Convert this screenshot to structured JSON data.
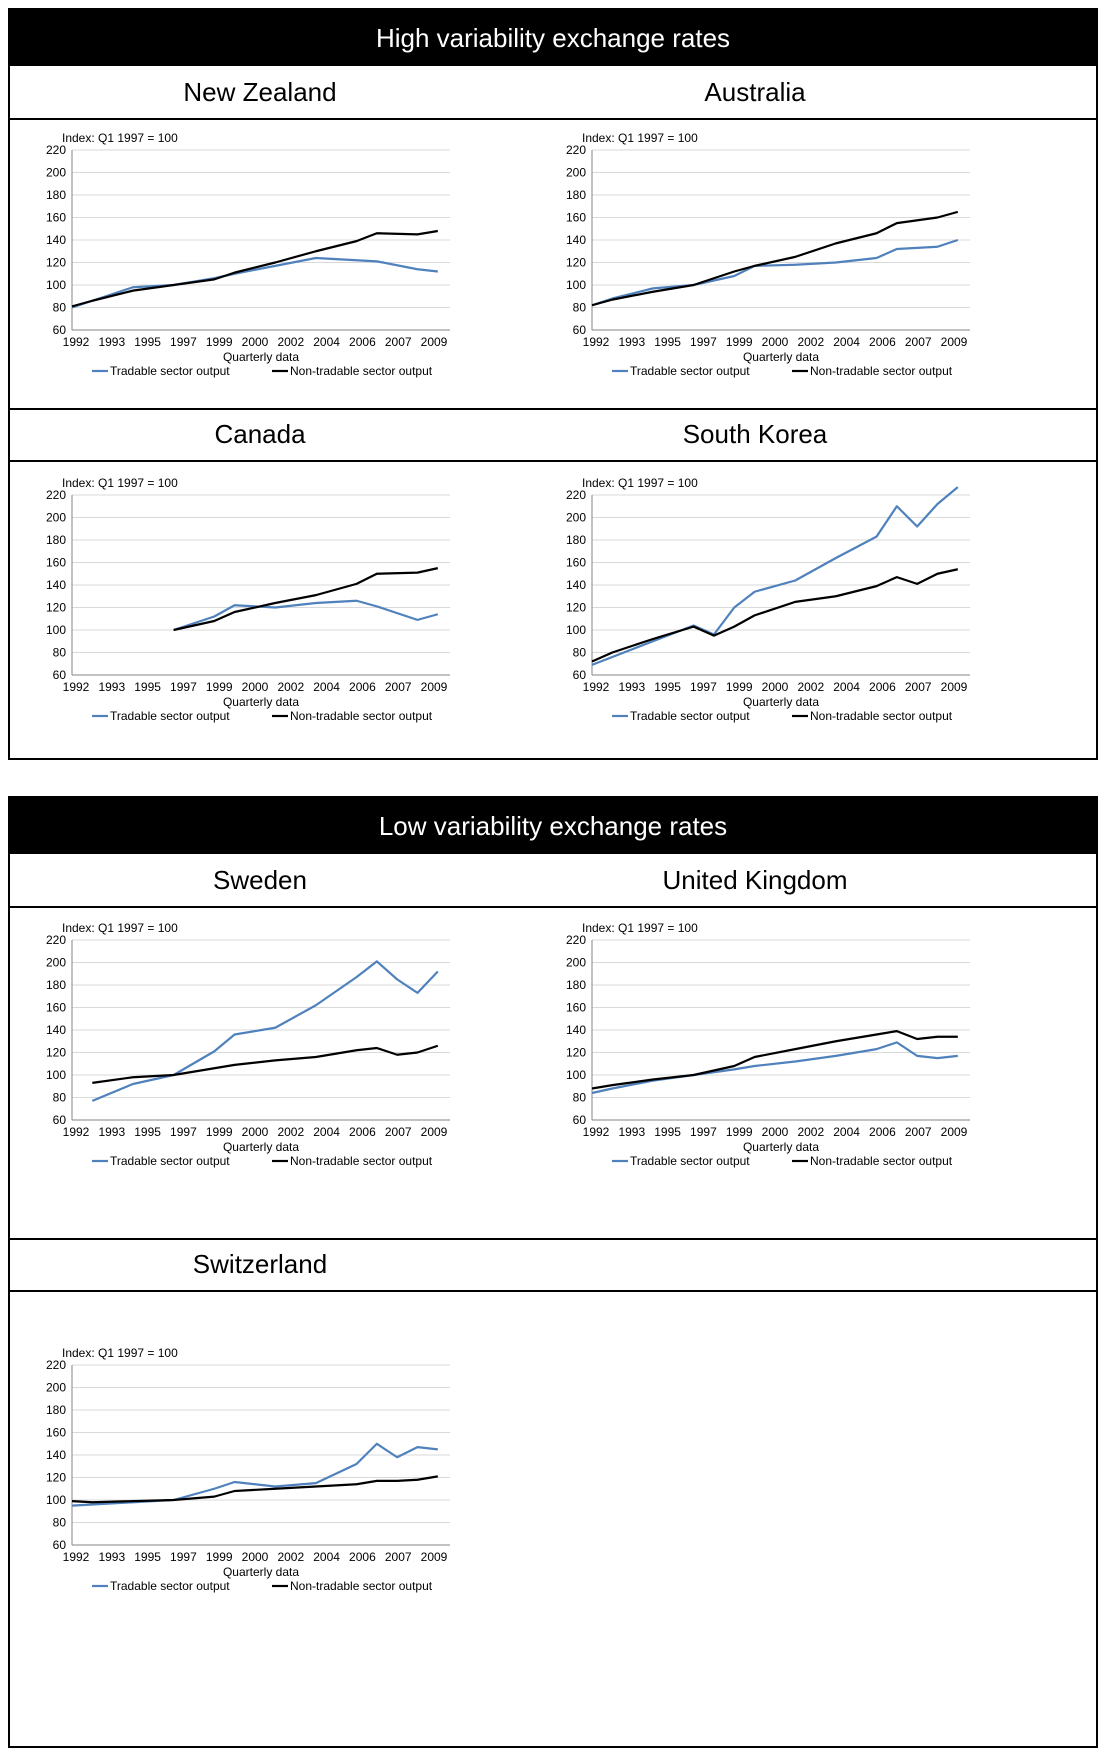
{
  "sections": [
    {
      "title": "High variability exchange rates"
    },
    {
      "title": "Low variability exchange rates"
    }
  ],
  "countries": [
    "New Zealand",
    "Australia",
    "Canada",
    "South Korea",
    "Sweden",
    "United Kingdom",
    "Switzerland"
  ],
  "colors": {
    "tradable": "#4F81BD",
    "non_tradable": "#000000",
    "grid": "#D9D9D9"
  },
  "chart_common": {
    "index_label": "Index: Q1 1997 = 100",
    "xlabel": "Quarterly data",
    "x_ticks": [
      "1992",
      "1993",
      "1995",
      "1997",
      "1999",
      "2000",
      "2002",
      "2004",
      "2006",
      "2007",
      "2009"
    ],
    "y_ticks": [
      60,
      80,
      100,
      120,
      140,
      160,
      180,
      200,
      220
    ],
    "ylim": [
      60,
      220
    ],
    "legend": [
      "Tradable sector output",
      "Non-tradable sector output"
    ]
  },
  "chart_data": [
    {
      "type": "line",
      "title": "New Zealand",
      "xlabel": "Quarterly data",
      "ylim": [
        60,
        220
      ],
      "x": [
        "1992",
        "1993",
        "1995",
        "1997",
        "1999",
        "2000",
        "2002",
        "2004",
        "2006",
        "2007",
        "2009",
        "2010"
      ],
      "series": [
        {
          "name": "Tradable sector output",
          "values": [
            80,
            86,
            98,
            100,
            106,
            110,
            117,
            124,
            122,
            121,
            114,
            112
          ]
        },
        {
          "name": "Non-tradable sector output",
          "values": [
            81,
            86,
            95,
            100,
            105,
            111,
            120,
            130,
            139,
            146,
            145,
            148
          ]
        }
      ]
    },
    {
      "type": "line",
      "title": "Australia",
      "xlabel": "Quarterly data",
      "ylim": [
        60,
        220
      ],
      "x": [
        "1992",
        "1993",
        "1995",
        "1997",
        "1999",
        "2000",
        "2002",
        "2004",
        "2006",
        "2007",
        "2009",
        "2010"
      ],
      "series": [
        {
          "name": "Tradable sector output",
          "values": [
            82,
            88,
            97,
            100,
            108,
            117,
            118,
            120,
            124,
            132,
            134,
            140
          ]
        },
        {
          "name": "Non-tradable sector output",
          "values": [
            82,
            87,
            94,
            100,
            112,
            117,
            125,
            137,
            146,
            155,
            160,
            165
          ]
        }
      ]
    },
    {
      "type": "line",
      "title": "Canada",
      "xlabel": "Quarterly data",
      "ylim": [
        60,
        220
      ],
      "x": [
        "1997",
        "1999",
        "2000",
        "2002",
        "2004",
        "2006",
        "2007",
        "2009",
        "2010"
      ],
      "series": [
        {
          "name": "Tradable sector output",
          "values": [
            100,
            112,
            122,
            120,
            124,
            126,
            121,
            109,
            114
          ]
        },
        {
          "name": "Non-tradable sector output",
          "values": [
            100,
            108,
            116,
            124,
            131,
            141,
            150,
            151,
            155
          ]
        }
      ]
    },
    {
      "type": "line",
      "title": "South Korea",
      "xlabel": "Quarterly data",
      "ylim": [
        60,
        220
      ],
      "x": [
        "1992",
        "1993",
        "1995",
        "1997",
        "1998",
        "1999",
        "2000",
        "2002",
        "2004",
        "2006",
        "2007",
        "2008",
        "2009",
        "2010"
      ],
      "series": [
        {
          "name": "Tradable sector output",
          "values": [
            69,
            76,
            90,
            104,
            96,
            120,
            134,
            144,
            164,
            183,
            210,
            192,
            212,
            227
          ]
        },
        {
          "name": "Non-tradable sector output",
          "values": [
            72,
            80,
            92,
            103,
            95,
            103,
            113,
            125,
            130,
            139,
            147,
            141,
            150,
            154
          ]
        }
      ]
    },
    {
      "type": "line",
      "title": "Sweden",
      "xlabel": "Quarterly data",
      "ylim": [
        60,
        220
      ],
      "x": [
        "1993",
        "1995",
        "1997",
        "1999",
        "2000",
        "2002",
        "2004",
        "2006",
        "2007",
        "2008",
        "2009",
        "2010"
      ],
      "series": [
        {
          "name": "Tradable sector output",
          "values": [
            77,
            92,
            100,
            121,
            136,
            142,
            162,
            187,
            201,
            185,
            173,
            192
          ]
        },
        {
          "name": "Non-tradable sector output",
          "values": [
            93,
            98,
            100,
            106,
            109,
            113,
            116,
            122,
            124,
            118,
            120,
            126
          ]
        }
      ]
    },
    {
      "type": "line",
      "title": "United Kingdom",
      "xlabel": "Quarterly data",
      "ylim": [
        60,
        220
      ],
      "x": [
        "1992",
        "1993",
        "1995",
        "1997",
        "1999",
        "2000",
        "2002",
        "2004",
        "2006",
        "2007",
        "2008",
        "2009",
        "2010"
      ],
      "series": [
        {
          "name": "Tradable sector output",
          "values": [
            84,
            88,
            95,
            100,
            105,
            108,
            112,
            117,
            123,
            129,
            117,
            115,
            117
          ]
        },
        {
          "name": "Non-tradable sector output",
          "values": [
            88,
            91,
            96,
            100,
            108,
            116,
            123,
            130,
            136,
            139,
            132,
            134,
            134
          ]
        }
      ]
    },
    {
      "type": "line",
      "title": "Switzerland",
      "xlabel": "Quarterly data",
      "ylim": [
        60,
        220
      ],
      "x": [
        "1992",
        "1993",
        "1995",
        "1997",
        "1999",
        "2000",
        "2002",
        "2004",
        "2006",
        "2007",
        "2008",
        "2009",
        "2010"
      ],
      "series": [
        {
          "name": "Tradable sector output",
          "values": [
            95,
            96,
            98,
            100,
            110,
            116,
            112,
            115,
            132,
            150,
            138,
            147,
            145
          ]
        },
        {
          "name": "Non-tradable sector output",
          "values": [
            99,
            98,
            99,
            100,
            103,
            108,
            110,
            112,
            114,
            117,
            117,
            118,
            121
          ]
        }
      ]
    }
  ]
}
